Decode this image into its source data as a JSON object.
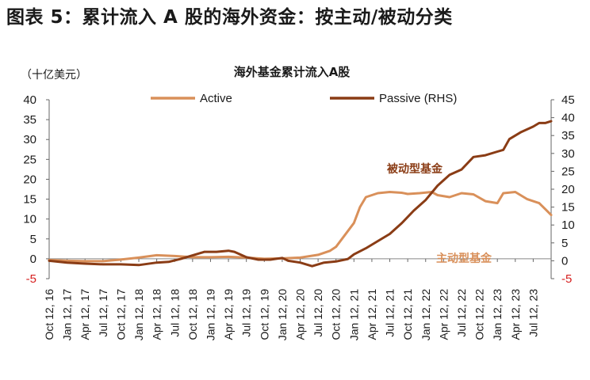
{
  "figure_title": "图表 5：累计流入 A 股的海外资金：按主动/被动分类",
  "chart_data": {
    "type": "line",
    "title": "海外基金累计流入A股",
    "unit_label": "（十亿美元）",
    "left_axis": {
      "ylim": [
        -5,
        40
      ],
      "ticks": [
        "-5",
        "0",
        "5",
        "10",
        "15",
        "20",
        "25",
        "30",
        "35",
        "40"
      ]
    },
    "right_axis": {
      "ylim": [
        -5,
        45
      ],
      "ticks": [
        "-5",
        "0",
        "5",
        "10",
        "15",
        "20",
        "25",
        "30",
        "35",
        "40",
        "45"
      ]
    },
    "negative_tick_color": "#d61f1f",
    "x_tick_labels": [
      "Oct 12, 16",
      "Jan 12, 17",
      "Apr 12, 17",
      "Jul 12, 17",
      "Oct 12, 17",
      "Jan 12, 18",
      "Apr 12, 18",
      "Jul 12, 18",
      "Oct 12, 18",
      "Jan 12, 19",
      "Apr 12, 19",
      "Jul 12, 19",
      "Oct 12, 19",
      "Jan 12, 20",
      "Apr 12, 20",
      "Jul 12, 20",
      "Oct 12, 20",
      "Jan 12, 21",
      "Apr 12, 21",
      "Jul 12, 21",
      "Oct 12, 21",
      "Jan 12, 22",
      "Apr 12, 22",
      "Jul 12, 22",
      "Oct 12, 22",
      "Jan 12, 23",
      "Apr 12, 23",
      "Jul 12, 23"
    ],
    "x_start_month": "2016-10",
    "x_end_month": "2023-10",
    "legend": {
      "placement": "top"
    },
    "series": [
      {
        "name": "Active",
        "axis": "left",
        "color": "#d9905a",
        "annotation": "主动型基金",
        "points": [
          [
            "2016-10",
            -0.3
          ],
          [
            "2017-01",
            -0.5
          ],
          [
            "2017-04",
            -0.6
          ],
          [
            "2017-07",
            -0.6
          ],
          [
            "2017-10",
            -0.2
          ],
          [
            "2018-01",
            0.3
          ],
          [
            "2018-04",
            0.9
          ],
          [
            "2018-07",
            0.7
          ],
          [
            "2018-10",
            0.4
          ],
          [
            "2019-01",
            0.4
          ],
          [
            "2019-04",
            0.5
          ],
          [
            "2019-07",
            0.3
          ],
          [
            "2019-10",
            0.0
          ],
          [
            "2020-01",
            0.1
          ],
          [
            "2020-04",
            0.3
          ],
          [
            "2020-07",
            1.0
          ],
          [
            "2020-09",
            2.0
          ],
          [
            "2020-10",
            3.0
          ],
          [
            "2020-12",
            7.0
          ],
          [
            "2021-01",
            9.0
          ],
          [
            "2021-02",
            13.0
          ],
          [
            "2021-03",
            15.5
          ],
          [
            "2021-05",
            16.5
          ],
          [
            "2021-07",
            16.8
          ],
          [
            "2021-09",
            16.6
          ],
          [
            "2021-10",
            16.3
          ],
          [
            "2021-12",
            16.5
          ],
          [
            "2022-02",
            16.8
          ],
          [
            "2022-03",
            16.0
          ],
          [
            "2022-05",
            15.5
          ],
          [
            "2022-07",
            16.5
          ],
          [
            "2022-09",
            16.2
          ],
          [
            "2022-11",
            14.5
          ],
          [
            "2023-01",
            14.0
          ],
          [
            "2023-02",
            16.5
          ],
          [
            "2023-04",
            16.8
          ],
          [
            "2023-06",
            15.0
          ],
          [
            "2023-08",
            14.0
          ],
          [
            "2023-09",
            12.5
          ],
          [
            "2023-10",
            11.0
          ]
        ]
      },
      {
        "name": "Passive (RHS)",
        "axis": "right",
        "color": "#8a3c15",
        "annotation": "被动型基金",
        "points": [
          [
            "2016-10",
            0.0
          ],
          [
            "2017-01",
            -0.5
          ],
          [
            "2017-04",
            -0.8
          ],
          [
            "2017-07",
            -1.0
          ],
          [
            "2017-10",
            -1.0
          ],
          [
            "2018-01",
            -1.2
          ],
          [
            "2018-04",
            -0.5
          ],
          [
            "2018-06",
            -0.3
          ],
          [
            "2018-08",
            0.5
          ],
          [
            "2018-10",
            1.5
          ],
          [
            "2018-12",
            2.5
          ],
          [
            "2019-02",
            2.5
          ],
          [
            "2019-04",
            2.8
          ],
          [
            "2019-05",
            2.5
          ],
          [
            "2019-07",
            1.0
          ],
          [
            "2019-09",
            0.3
          ],
          [
            "2019-11",
            0.3
          ],
          [
            "2020-01",
            0.8
          ],
          [
            "2020-02",
            0.0
          ],
          [
            "2020-04",
            -0.5
          ],
          [
            "2020-06",
            -1.5
          ],
          [
            "2020-08",
            -0.5
          ],
          [
            "2020-10",
            -0.2
          ],
          [
            "2020-12",
            0.5
          ],
          [
            "2021-01",
            1.8
          ],
          [
            "2021-03",
            3.5
          ],
          [
            "2021-05",
            5.5
          ],
          [
            "2021-07",
            7.5
          ],
          [
            "2021-09",
            10.5
          ],
          [
            "2021-11",
            14.0
          ],
          [
            "2022-01",
            17.0
          ],
          [
            "2022-03",
            21.0
          ],
          [
            "2022-05",
            24.0
          ],
          [
            "2022-07",
            25.5
          ],
          [
            "2022-09",
            29.0
          ],
          [
            "2022-11",
            29.5
          ],
          [
            "2023-01",
            30.5
          ],
          [
            "2023-02",
            31.0
          ],
          [
            "2023-03",
            34.0
          ],
          [
            "2023-05",
            36.0
          ],
          [
            "2023-07",
            37.5
          ],
          [
            "2023-08",
            38.5
          ],
          [
            "2023-09",
            38.5
          ],
          [
            "2023-10",
            39.0
          ]
        ]
      }
    ]
  }
}
